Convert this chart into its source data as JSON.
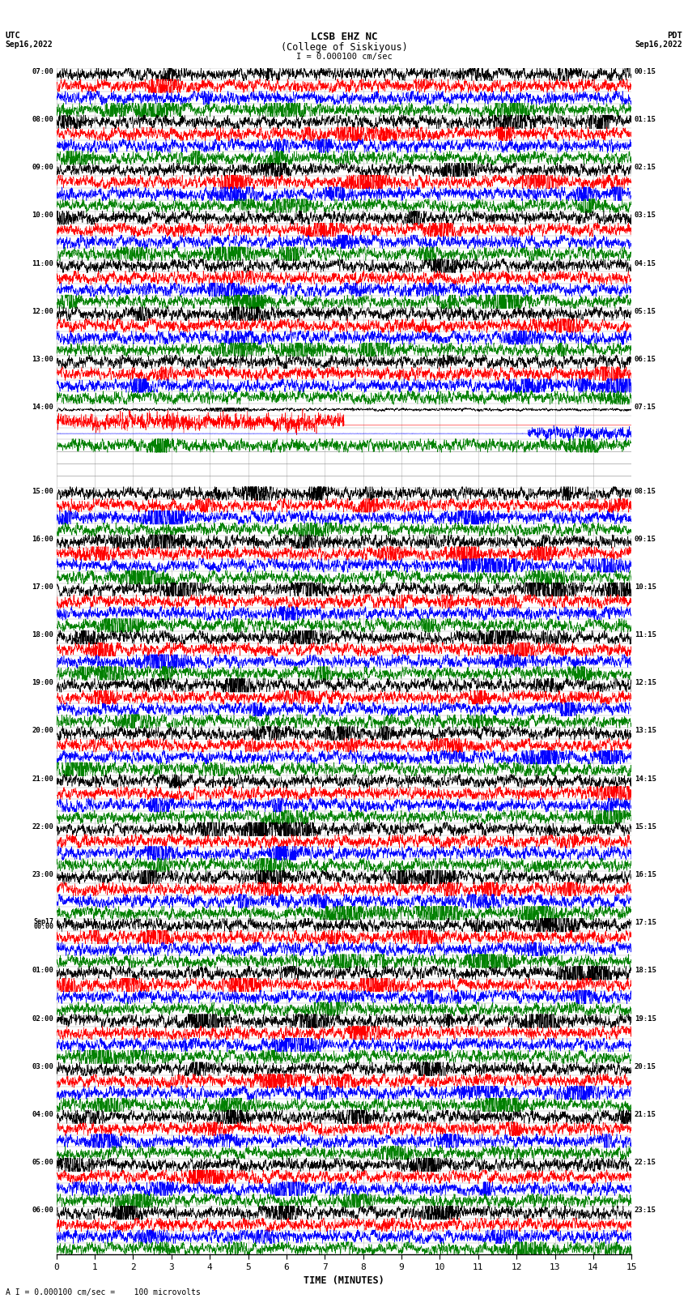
{
  "title_line1": "LCSB EHZ NC",
  "title_line2": "(College of Siskiyous)",
  "title_scale": "I = 0.000100 cm/sec",
  "label_utc": "UTC",
  "label_pdt": "PDT",
  "date_left": "Sep16,2022",
  "date_right": "Sep16,2022",
  "xlabel": "TIME (MINUTES)",
  "footer": "A I = 0.000100 cm/sec =    100 microvolts",
  "xlim": [
    0,
    15
  ],
  "xticks": [
    0,
    1,
    2,
    3,
    4,
    5,
    6,
    7,
    8,
    9,
    10,
    11,
    12,
    13,
    14,
    15
  ],
  "background_color": "#ffffff",
  "trace_colors": [
    "black",
    "red",
    "blue",
    "green"
  ],
  "noise_seed": 42
}
